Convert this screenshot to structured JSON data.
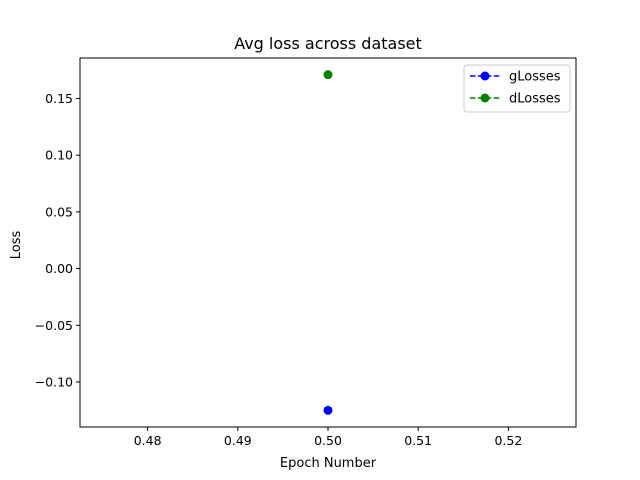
{
  "chart_data": {
    "type": "scatter",
    "title": "Avg loss across dataset",
    "xlabel": "Epoch Number",
    "ylabel": "Loss",
    "xlim": [
      0.4725,
      0.5275
    ],
    "ylim": [
      -0.1397,
      0.1857
    ],
    "xticks": [
      0.48,
      0.49,
      0.5,
      0.51,
      0.52
    ],
    "xtick_labels": [
      "0.48",
      "0.49",
      "0.50",
      "0.51",
      "0.52"
    ],
    "yticks": [
      -0.1,
      -0.05,
      0.0,
      0.05,
      0.1,
      0.15
    ],
    "ytick_labels": [
      "−0.10",
      "−0.05",
      "0.00",
      "0.05",
      "0.10",
      "0.15"
    ],
    "grid": false,
    "legend_position": "top-right",
    "series": [
      {
        "name": "gLosses",
        "color": "#0000ff",
        "linestyle": "dashed",
        "marker": "circle",
        "x": [
          0.5
        ],
        "y": [
          -0.125
        ]
      },
      {
        "name": "dLosses",
        "color": "#008000",
        "linestyle": "dashed",
        "marker": "circle",
        "x": [
          0.5
        ],
        "y": [
          0.171
        ]
      }
    ]
  }
}
